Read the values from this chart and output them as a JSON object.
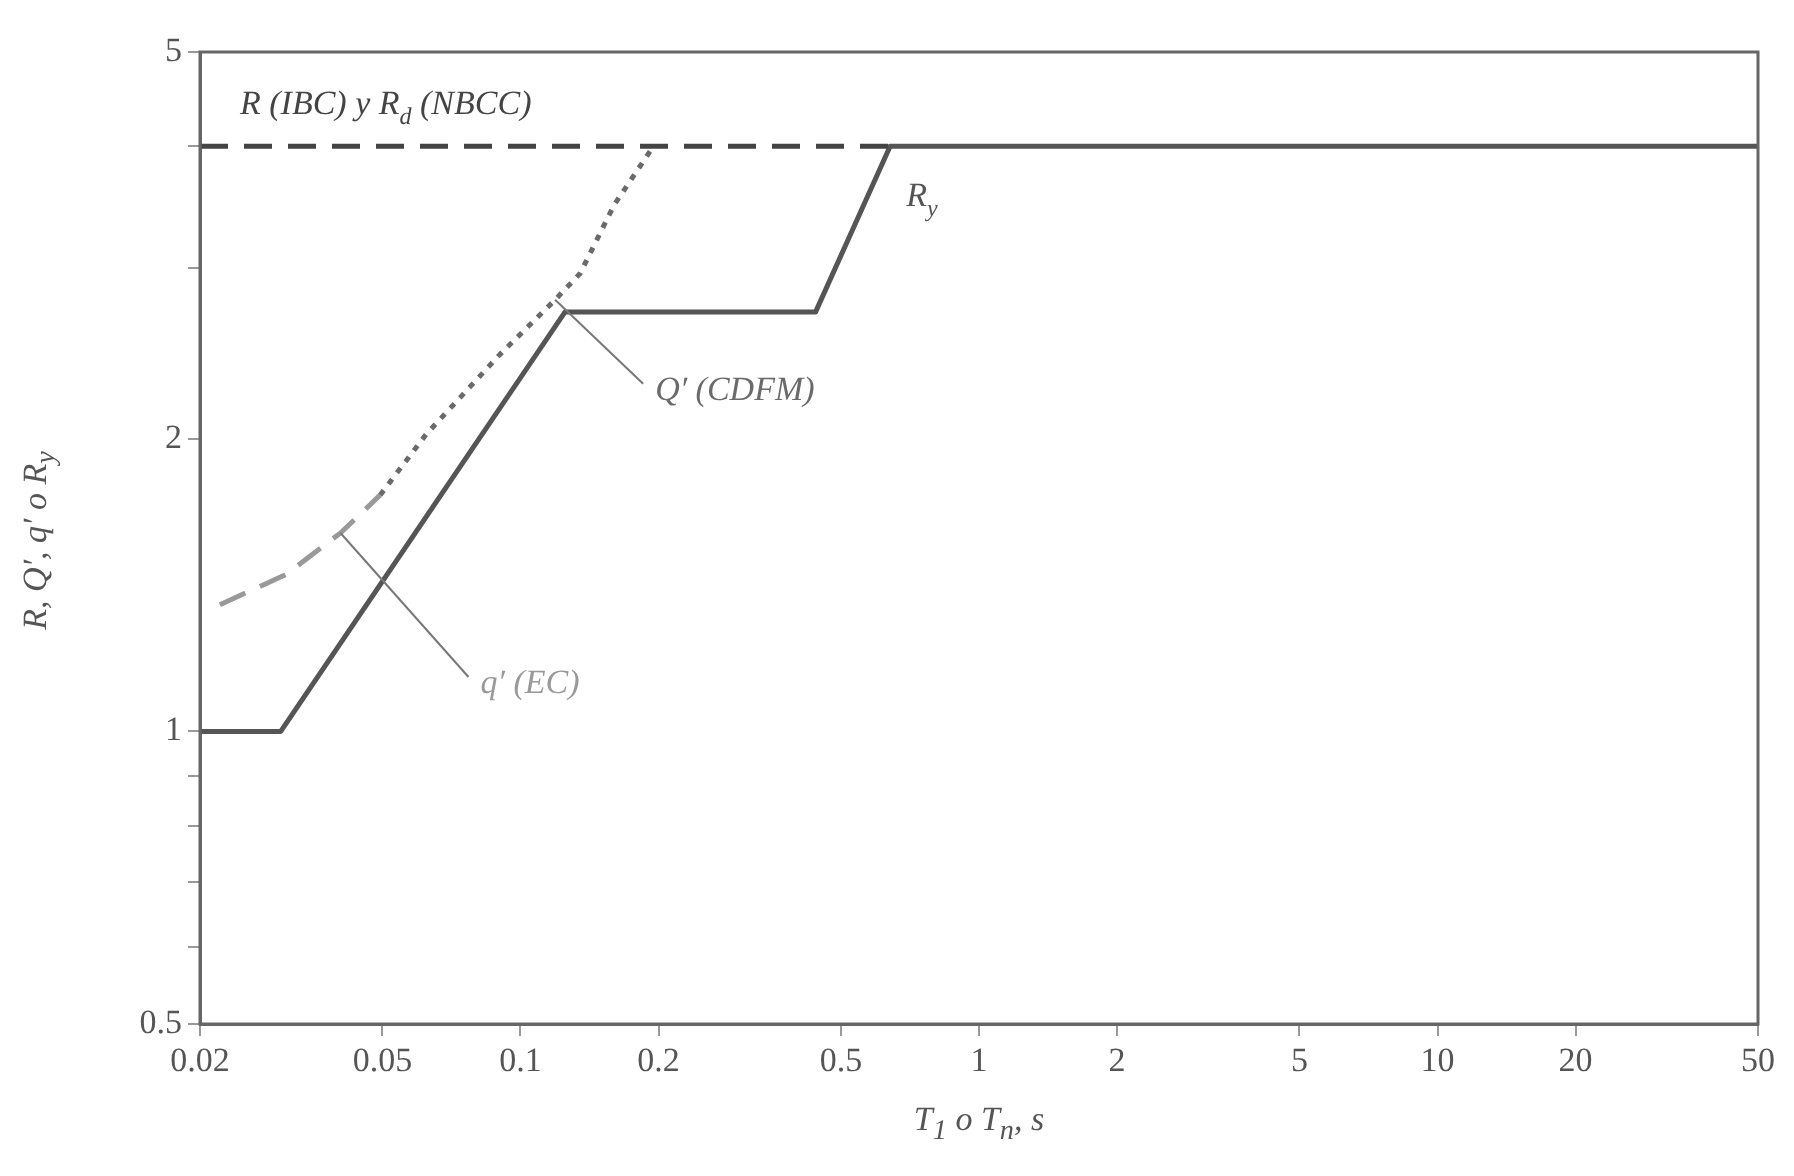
{
  "chart_data": {
    "type": "line",
    "xlabel": "T$_{1}$ o T$_{n}$, s",
    "ylabel": "R, Q′, q′ o R$_{y}$",
    "log": "xy",
    "grid": false,
    "legend": false,
    "marker": "none",
    "xlim": [
      0.02,
      50
    ],
    "xticks": [
      0.02,
      0.05,
      0.1,
      0.2,
      0.5,
      1,
      2,
      5,
      10,
      20,
      50
    ],
    "ylim": [
      0.5,
      5
    ],
    "yticks": [
      0.5,
      {
        "value": 0.6,
        "label": null
      },
      {
        "value": 0.7,
        "label": null
      },
      {
        "value": 0.8,
        "label": null
      },
      {
        "value": 0.9,
        "label": null
      },
      1,
      2,
      {
        "value": 3,
        "label": null
      },
      {
        "value": 4,
        "label": null
      },
      5
    ],
    "series": [
      {
        "name": "R (IBC) y R$_{d}$ (NBCC)",
        "color": "#444444",
        "line_style": "dashed",
        "x": [
          0.02,
          0.64
        ],
        "values": [
          4,
          4
        ]
      },
      {
        "name": "R$_{y}$",
        "color": "#555555",
        "line_style": "solid",
        "x": [
          0.02,
          0.03,
          0.125,
          0.44,
          0.64,
          50
        ],
        "values": [
          1,
          1,
          2.7,
          2.7,
          4,
          4
        ]
      },
      {
        "name": "q′ (EC)",
        "color": "#999999",
        "line_style": "dashed",
        "x": [
          0.0221,
          0.0308,
          0.0405,
          0.0494
        ],
        "values": [
          1.35,
          1.45,
          1.6,
          1.75
        ]
      },
      {
        "name": "Q′ (CDFM)",
        "color": "#6a6a6a",
        "line_style": "dotted",
        "x": [
          0.0494,
          0.0622,
          0.09,
          0.119,
          0.135,
          0.16,
          0.195
        ],
        "values": [
          1.75,
          2.02,
          2.44,
          2.78,
          2.96,
          3.48,
          4
        ]
      }
    ]
  }
}
